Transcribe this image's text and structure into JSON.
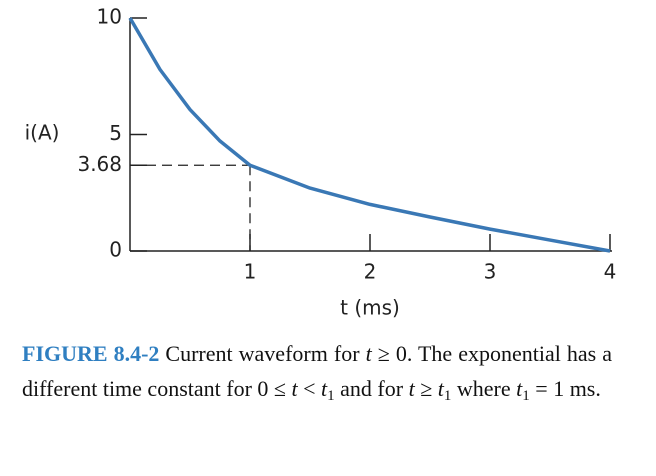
{
  "chart_data": {
    "type": "line",
    "x": [
      0,
      0.25,
      0.5,
      0.75,
      1,
      1.5,
      2,
      2.5,
      3,
      3.5,
      4
    ],
    "values": [
      10,
      7.79,
      6.07,
      4.72,
      3.68,
      2.7,
      2.0,
      1.46,
      0.94,
      0.47,
      0
    ],
    "color": "#3a78b5",
    "xlim": [
      0,
      4
    ],
    "ylim": [
      0,
      10
    ],
    "xticks": [
      1,
      2,
      3,
      4
    ],
    "yticks": [
      0,
      3.68,
      5,
      10
    ],
    "x_label": "t (ms)",
    "y_label": "i(A)"
  },
  "caption": {
    "label": "FIGURE 8.4-2",
    "segments": [
      "Current waveform for ",
      "t",
      " ≥ 0. The exponential has a different time constant for 0 ≤ ",
      "t",
      " < ",
      "t",
      "1",
      " and for ",
      "t",
      " ≥ ",
      "t",
      "1",
      " where ",
      "t",
      "1",
      " = 1 ms."
    ]
  }
}
